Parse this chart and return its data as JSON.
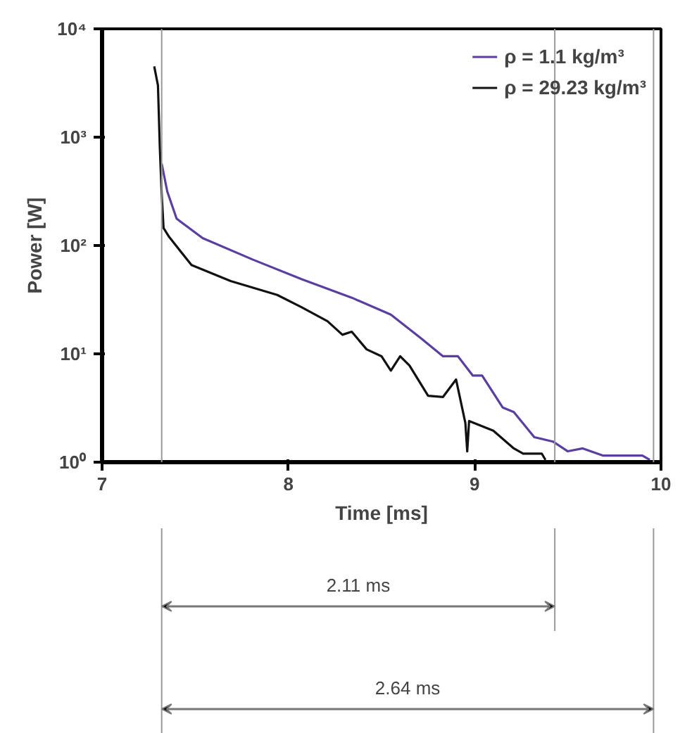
{
  "chart_data": {
    "type": "line",
    "xlabel": "Time [ms]",
    "ylabel": "Power [W]",
    "log": "y",
    "xlim": [
      7,
      10
    ],
    "xticks": [
      7,
      8,
      9,
      10
    ],
    "ylim": [
      1,
      10000
    ],
    "yticks": [
      {
        "value": 1,
        "label": "10⁰"
      },
      {
        "value": 10,
        "label": "10¹"
      },
      {
        "value": 100,
        "label": "10²"
      },
      {
        "value": 1000,
        "label": "10³"
      },
      {
        "value": 10000,
        "label": "10⁴"
      }
    ],
    "grid": false,
    "legend": "top right",
    "line_style": "solid",
    "marker": "none",
    "series": [
      {
        "name": "ρ = 1.1 kg/m³",
        "color": "#5a3fa0",
        "x": [
          7.32,
          7.35,
          7.4,
          7.54,
          7.81,
          8.07,
          8.34,
          8.55,
          8.71,
          8.83,
          8.91,
          8.99,
          9.04,
          9.15,
          9.21,
          9.32,
          9.42,
          9.5,
          9.58,
          9.69,
          9.9,
          9.94
        ],
        "values": [
          570,
          315,
          177,
          117,
          74,
          49,
          33,
          23,
          14,
          9.5,
          9.5,
          6.3,
          6.3,
          3.2,
          2.9,
          1.7,
          1.55,
          1.26,
          1.34,
          1.15,
          1.15,
          1.05
        ]
      },
      {
        "name": "ρ = 29.23 kg/m³",
        "color": "#111111",
        "x": [
          7.28,
          7.3,
          7.31,
          7.32,
          7.33,
          7.36,
          7.48,
          7.69,
          7.94,
          8.07,
          8.21,
          8.29,
          8.34,
          8.42,
          8.5,
          8.55,
          8.6,
          8.65,
          8.75,
          8.83,
          8.9,
          8.95,
          8.96,
          8.97,
          9.1,
          9.21,
          9.26,
          9.36,
          9.38
        ],
        "values": [
          4500,
          3000,
          800,
          300,
          145,
          120,
          66,
          47,
          35,
          27,
          20,
          15,
          16,
          11,
          9.5,
          7,
          9.5,
          7.8,
          4.1,
          4,
          5.8,
          2.3,
          1.26,
          2.4,
          1.95,
          1.34,
          1.2,
          1.2,
          1.05
        ]
      }
    ],
    "ref_lines": [
      {
        "axis": "x",
        "value": 7.32,
        "label": null,
        "color": "#999999"
      },
      {
        "axis": "x",
        "value": 9.43,
        "label": null,
        "color": "#999999"
      },
      {
        "axis": "x",
        "value": 9.96,
        "label": null,
        "color": "#999999"
      }
    ],
    "annotations": [
      "2.11 ms",
      "2.64 ms"
    ]
  }
}
